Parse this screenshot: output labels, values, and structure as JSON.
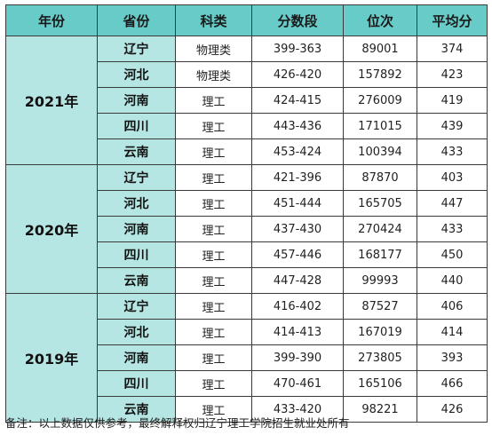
{
  "table": {
    "headers": [
      "年份",
      "省份",
      "科类",
      "分数段",
      "位次",
      "平均分"
    ],
    "groups": [
      {
        "year": "2021年",
        "rows": [
          {
            "province": "辽宁",
            "category": "物理类",
            "score_range": "399-363",
            "rank": "89001",
            "average": "374"
          },
          {
            "province": "河北",
            "category": "物理类",
            "score_range": "426-420",
            "rank": "157892",
            "average": "423"
          },
          {
            "province": "河南",
            "category": "理工",
            "score_range": "424-415",
            "rank": "276009",
            "average": "419"
          },
          {
            "province": "四川",
            "category": "理工",
            "score_range": "443-436",
            "rank": "171015",
            "average": "439"
          },
          {
            "province": "云南",
            "category": "理工",
            "score_range": "453-424",
            "rank": "100394",
            "average": "433"
          }
        ]
      },
      {
        "year": "2020年",
        "rows": [
          {
            "province": "辽宁",
            "category": "理工",
            "score_range": "421-396",
            "rank": "87870",
            "average": "403"
          },
          {
            "province": "河北",
            "category": "理工",
            "score_range": "451-444",
            "rank": "165705",
            "average": "447"
          },
          {
            "province": "河南",
            "category": "理工",
            "score_range": "437-430",
            "rank": "270424",
            "average": "433"
          },
          {
            "province": "四川",
            "category": "理工",
            "score_range": "457-446",
            "rank": "168177",
            "average": "450"
          },
          {
            "province": "云南",
            "category": "理工",
            "score_range": "447-428",
            "rank": "99993",
            "average": "440"
          }
        ]
      },
      {
        "year": "2019年",
        "rows": [
          {
            "province": "辽宁",
            "category": "理工",
            "score_range": "416-402",
            "rank": "87527",
            "average": "406"
          },
          {
            "province": "河北",
            "category": "理工",
            "score_range": "414-413",
            "rank": "167019",
            "average": "414"
          },
          {
            "province": "河南",
            "category": "理工",
            "score_range": "399-390",
            "rank": "273805",
            "average": "393"
          },
          {
            "province": "四川",
            "category": "理工",
            "score_range": "470-461",
            "rank": "165106",
            "average": "466"
          },
          {
            "province": "云南",
            "category": "理工",
            "score_range": "433-420",
            "rank": "98221",
            "average": "426"
          }
        ]
      }
    ]
  },
  "footnote": "备注：以上数据仅供参考，最终解释权归辽宁理工学院招生就业处所有",
  "colors": {
    "header_bg": "#67cbc8",
    "label_bg": "#b5e6e3",
    "border": "#3a3a3a"
  }
}
